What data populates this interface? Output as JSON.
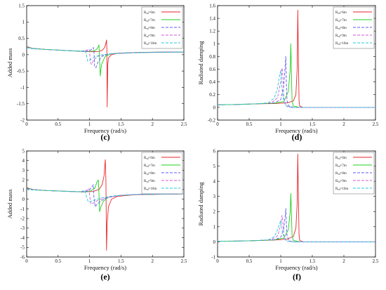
{
  "chart_data": [
    {
      "id": "c",
      "panel_label": "(c)",
      "type": "line",
      "xlabel": "Frequency (rad/s)",
      "ylabel": "Added mass",
      "xlim": [
        0,
        2.5
      ],
      "ylim": [
        -2,
        1.5
      ],
      "xticks": [
        "0",
        "0.5",
        "1",
        "1.5",
        "2",
        "2.5"
      ],
      "yticks": [
        "1.5",
        "1",
        "0.5",
        "0",
        "-0.5",
        "-1",
        "-1.5",
        "-2"
      ],
      "legend_placement": "top-right",
      "series": [
        {
          "name": "R_{sd}=6m",
          "color": "#e8262b",
          "dash": "",
          "x": [
            0,
            0.1,
            0.3,
            0.5,
            0.7,
            0.9,
            1.05,
            1.15,
            1.2,
            1.24,
            1.26,
            1.27,
            1.275,
            1.28,
            1.285,
            1.29,
            1.3,
            1.35,
            1.45,
            1.7,
            2.0,
            2.5
          ],
          "y": [
            0.25,
            0.19,
            0.16,
            0.14,
            0.12,
            0.1,
            0.09,
            0.1,
            0.13,
            0.22,
            0.35,
            0.45,
            0.2,
            -1.6,
            -0.9,
            -0.3,
            -0.1,
            0.0,
            0.04,
            0.06,
            0.07,
            0.08
          ]
        },
        {
          "name": "R_{sd}=7m",
          "color": "#1fd01f",
          "dash": "",
          "x": [
            0,
            0.1,
            0.3,
            0.5,
            0.7,
            0.9,
            1.0,
            1.08,
            1.12,
            1.14,
            1.15,
            1.16,
            1.17,
            1.19,
            1.25,
            1.35,
            1.5,
            1.8,
            2.2,
            2.5
          ],
          "y": [
            0.24,
            0.19,
            0.16,
            0.14,
            0.12,
            0.1,
            0.1,
            0.12,
            0.18,
            0.25,
            0.3,
            -0.2,
            -0.65,
            -0.3,
            -0.05,
            0.03,
            0.05,
            0.07,
            0.08,
            0.08
          ]
        },
        {
          "name": "R_{sd}=8m",
          "color": "#5b5bf0",
          "dash": "4 2",
          "x": [
            0,
            0.1,
            0.3,
            0.5,
            0.7,
            0.9,
            0.98,
            1.03,
            1.06,
            1.07,
            1.08,
            1.1,
            1.14,
            1.2,
            1.3,
            1.5,
            1.8,
            2.2,
            2.5
          ],
          "y": [
            0.23,
            0.19,
            0.16,
            0.14,
            0.12,
            0.1,
            0.11,
            0.16,
            0.22,
            0.1,
            -0.35,
            -0.4,
            -0.2,
            -0.05,
            0.02,
            0.05,
            0.07,
            0.08,
            0.08
          ]
        },
        {
          "name": "R_{sd}=9m",
          "color": "#d05ad8",
          "dash": "4 2",
          "x": [
            0,
            0.1,
            0.3,
            0.5,
            0.7,
            0.9,
            0.95,
            0.98,
            1.0,
            1.01,
            1.03,
            1.07,
            1.15,
            1.3,
            1.5,
            1.8,
            2.2,
            2.5
          ],
          "y": [
            0.22,
            0.19,
            0.16,
            0.14,
            0.12,
            0.11,
            0.13,
            0.16,
            0.15,
            -0.2,
            -0.3,
            -0.15,
            -0.03,
            0.02,
            0.05,
            0.07,
            0.08,
            0.08
          ]
        },
        {
          "name": "R_{sd}=10m",
          "color": "#22c8d8",
          "dash": "4 2",
          "x": [
            0,
            0.1,
            0.3,
            0.5,
            0.7,
            0.85,
            0.9,
            0.93,
            0.95,
            0.97,
            1.0,
            1.05,
            1.15,
            1.3,
            1.5,
            1.8,
            2.2,
            2.5
          ],
          "y": [
            0.21,
            0.18,
            0.16,
            0.14,
            0.12,
            0.11,
            0.12,
            0.13,
            0.0,
            -0.2,
            -0.18,
            -0.1,
            -0.02,
            0.02,
            0.04,
            0.06,
            0.07,
            0.08
          ]
        }
      ]
    },
    {
      "id": "d",
      "panel_label": "(d)",
      "type": "line",
      "xlabel": "Frequency (rad/s)",
      "ylabel": "Radiated damping",
      "xlim": [
        0,
        2.5
      ],
      "ylim": [
        -0.2,
        1.6
      ],
      "xticks": [
        "0",
        "0.5",
        "1",
        "1.5",
        "2",
        "2.5"
      ],
      "yticks": [
        "1.6",
        "1.4",
        "1.2",
        "1",
        "0.8",
        "0.6",
        "0.4",
        "0.2",
        "0",
        "-0.2"
      ],
      "legend_placement": "top-right",
      "series": [
        {
          "name": "R_{sd}=6m",
          "color": "#e8262b",
          "dash": "",
          "x": [
            0,
            0.3,
            0.6,
            0.9,
            1.1,
            1.2,
            1.24,
            1.26,
            1.27,
            1.28,
            1.29,
            1.3,
            1.35,
            1.5,
            2.0,
            2.5
          ],
          "y": [
            0.04,
            0.045,
            0.055,
            0.06,
            0.07,
            0.1,
            0.2,
            0.6,
            1.53,
            0.8,
            0.1,
            0.02,
            0.0,
            0.0,
            0.0,
            0.0
          ]
        },
        {
          "name": "R_{sd}=7m",
          "color": "#1fd01f",
          "dash": "",
          "x": [
            0,
            0.3,
            0.6,
            0.9,
            1.05,
            1.12,
            1.15,
            1.16,
            1.17,
            1.18,
            1.2,
            1.3,
            1.5,
            2.0,
            2.5
          ],
          "y": [
            0.04,
            0.045,
            0.055,
            0.065,
            0.09,
            0.25,
            0.6,
            1.0,
            0.5,
            0.1,
            0.02,
            0.0,
            0.0,
            0.0,
            0.0
          ]
        },
        {
          "name": "R_{sd}=8m",
          "color": "#5b5bf0",
          "dash": "4 2",
          "x": [
            0,
            0.3,
            0.6,
            0.9,
            1.0,
            1.05,
            1.07,
            1.08,
            1.09,
            1.1,
            1.13,
            1.2,
            1.5,
            2.0,
            2.5
          ],
          "y": [
            0.04,
            0.045,
            0.055,
            0.07,
            0.12,
            0.35,
            0.65,
            0.8,
            0.35,
            0.1,
            0.02,
            0.0,
            0.0,
            0.0,
            0.0
          ]
        },
        {
          "name": "R_{sd}=9m",
          "color": "#d05ad8",
          "dash": "4 2",
          "x": [
            0,
            0.3,
            0.6,
            0.85,
            0.95,
            1.0,
            1.02,
            1.03,
            1.05,
            1.08,
            1.15,
            1.3,
            2.0,
            2.5
          ],
          "y": [
            0.04,
            0.045,
            0.055,
            0.07,
            0.15,
            0.4,
            0.62,
            0.55,
            0.15,
            0.03,
            0.0,
            0.0,
            0.0,
            0.0
          ]
        },
        {
          "name": "R_{sd}=10m",
          "color": "#22c8d8",
          "dash": "4 2",
          "x": [
            0,
            0.3,
            0.6,
            0.8,
            0.9,
            0.95,
            0.98,
            1.0,
            1.02,
            1.05,
            1.1,
            1.2,
            1.5,
            2.0,
            2.5
          ],
          "y": [
            0.04,
            0.045,
            0.055,
            0.07,
            0.15,
            0.3,
            0.5,
            0.58,
            0.3,
            0.08,
            0.01,
            0.0,
            0.0,
            0.0,
            0.0
          ]
        }
      ]
    },
    {
      "id": "e",
      "panel_label": "(e)",
      "type": "line",
      "xlabel": "Frequency (rad/s)",
      "ylabel": "Added mass",
      "xlim": [
        0,
        2.5
      ],
      "ylim": [
        -6,
        5
      ],
      "xticks": [
        "0",
        "0.5",
        "1",
        "1.5",
        "2",
        "2.5"
      ],
      "yticks": [
        "5",
        "4",
        "3",
        "2",
        "1",
        "0",
        "-1",
        "-2",
        "-3",
        "-4",
        "-5",
        "-6"
      ],
      "legend_placement": "top-right",
      "series": [
        {
          "name": "R_{sd}=6m",
          "color": "#e8262b",
          "dash": "",
          "x": [
            0,
            0.1,
            0.3,
            0.5,
            0.7,
            0.9,
            1.05,
            1.15,
            1.2,
            1.23,
            1.25,
            1.26,
            1.265,
            1.27,
            1.28,
            1.3,
            1.35,
            1.45,
            1.7,
            2.0,
            2.5
          ],
          "y": [
            1.2,
            1.0,
            0.9,
            0.85,
            0.8,
            0.75,
            0.8,
            1.0,
            1.5,
            2.4,
            4.1,
            2.0,
            -1.5,
            -5.3,
            -2.5,
            -0.8,
            0.0,
            0.3,
            0.45,
            0.5,
            0.55
          ]
        },
        {
          "name": "R_{sd}=7m",
          "color": "#1fd01f",
          "dash": "",
          "x": [
            0,
            0.1,
            0.3,
            0.5,
            0.7,
            0.9,
            1.0,
            1.08,
            1.12,
            1.14,
            1.15,
            1.16,
            1.18,
            1.22,
            1.3,
            1.5,
            1.8,
            2.2,
            2.5
          ],
          "y": [
            1.15,
            1.0,
            0.9,
            0.85,
            0.8,
            0.75,
            0.8,
            1.1,
            1.8,
            2.0,
            0.5,
            -1.3,
            -0.8,
            -0.2,
            0.2,
            0.4,
            0.5,
            0.52,
            0.55
          ]
        },
        {
          "name": "R_{sd}=8m",
          "color": "#5b5bf0",
          "dash": "4 2",
          "x": [
            0,
            0.1,
            0.3,
            0.5,
            0.7,
            0.9,
            0.98,
            1.03,
            1.06,
            1.07,
            1.09,
            1.12,
            1.2,
            1.3,
            1.5,
            1.8,
            2.2,
            2.5
          ],
          "y": [
            1.1,
            1.0,
            0.9,
            0.85,
            0.8,
            0.75,
            0.85,
            1.2,
            1.5,
            0.2,
            -0.8,
            -0.5,
            -0.1,
            0.2,
            0.4,
            0.5,
            0.52,
            0.55
          ]
        },
        {
          "name": "R_{sd}=9m",
          "color": "#d05ad8",
          "dash": "4 2",
          "x": [
            0,
            0.1,
            0.3,
            0.5,
            0.7,
            0.9,
            0.95,
            0.99,
            1.0,
            1.02,
            1.06,
            1.15,
            1.3,
            1.5,
            1.8,
            2.2,
            2.5
          ],
          "y": [
            1.05,
            1.0,
            0.9,
            0.85,
            0.8,
            0.78,
            0.9,
            1.1,
            0.5,
            -0.5,
            -0.4,
            -0.05,
            0.2,
            0.4,
            0.5,
            0.52,
            0.55
          ]
        },
        {
          "name": "R_{sd}=10m",
          "color": "#22c8d8",
          "dash": "4 2",
          "x": [
            0,
            0.1,
            0.3,
            0.5,
            0.7,
            0.85,
            0.9,
            0.93,
            0.95,
            0.98,
            1.02,
            1.1,
            1.2,
            1.4,
            1.7,
            2.1,
            2.5
          ],
          "y": [
            1.0,
            0.95,
            0.9,
            0.85,
            0.8,
            0.78,
            0.85,
            0.9,
            0.3,
            -0.3,
            -0.25,
            -0.05,
            0.15,
            0.35,
            0.48,
            0.52,
            0.55
          ]
        }
      ]
    },
    {
      "id": "f",
      "panel_label": "(f)",
      "type": "line",
      "xlabel": "Frequency (rad/s)",
      "ylabel": "Radiated damping",
      "xlim": [
        0,
        2.5
      ],
      "ylim": [
        -1,
        6
      ],
      "xticks": [
        "0",
        "0.5",
        "1",
        "1.5",
        "2",
        "2.5"
      ],
      "yticks": [
        "6",
        "5",
        "4",
        "3",
        "2",
        "1",
        "0",
        "-1"
      ],
      "legend_placement": "top-right",
      "series": [
        {
          "name": "R_{sd}=6m",
          "color": "#e8262b",
          "dash": "",
          "x": [
            0,
            0.3,
            0.6,
            0.9,
            1.1,
            1.2,
            1.24,
            1.26,
            1.27,
            1.28,
            1.29,
            1.3,
            1.35,
            1.5,
            2.0,
            2.5
          ],
          "y": [
            0.04,
            0.05,
            0.08,
            0.12,
            0.18,
            0.35,
            0.9,
            2.5,
            5.8,
            3.0,
            0.5,
            0.1,
            0.0,
            0.0,
            0.0,
            0.0
          ]
        },
        {
          "name": "R_{sd}=7m",
          "color": "#1fd01f",
          "dash": "",
          "x": [
            0,
            0.3,
            0.6,
            0.9,
            1.05,
            1.12,
            1.15,
            1.16,
            1.17,
            1.18,
            1.2,
            1.3,
            1.5,
            2.0,
            2.5
          ],
          "y": [
            0.04,
            0.05,
            0.08,
            0.13,
            0.25,
            0.8,
            2.0,
            3.2,
            1.8,
            0.4,
            0.1,
            0.0,
            0.0,
            0.0,
            0.0
          ]
        },
        {
          "name": "R_{sd}=8m",
          "color": "#5b5bf0",
          "dash": "4 2",
          "x": [
            0,
            0.3,
            0.6,
            0.9,
            1.0,
            1.05,
            1.07,
            1.08,
            1.09,
            1.1,
            1.13,
            1.2,
            1.5,
            2.0,
            2.5
          ],
          "y": [
            0.04,
            0.05,
            0.08,
            0.14,
            0.3,
            0.9,
            1.7,
            2.2,
            1.2,
            0.4,
            0.08,
            0.0,
            0.0,
            0.0,
            0.0
          ]
        },
        {
          "name": "R_{sd}=9m",
          "color": "#d05ad8",
          "dash": "4 2",
          "x": [
            0,
            0.3,
            0.6,
            0.85,
            0.95,
            1.0,
            1.02,
            1.03,
            1.05,
            1.08,
            1.15,
            1.3,
            2.0,
            2.5
          ],
          "y": [
            0.04,
            0.05,
            0.08,
            0.14,
            0.4,
            1.1,
            1.75,
            1.5,
            0.5,
            0.1,
            0.01,
            0.0,
            0.0,
            0.0
          ]
        },
        {
          "name": "R_{sd}=10m",
          "color": "#22c8d8",
          "dash": "4 2",
          "x": [
            0,
            0.3,
            0.6,
            0.8,
            0.9,
            0.95,
            0.98,
            1.0,
            1.02,
            1.05,
            1.1,
            1.2,
            1.5,
            2.0,
            2.5
          ],
          "y": [
            0.04,
            0.05,
            0.08,
            0.13,
            0.35,
            0.8,
            1.2,
            1.4,
            0.8,
            0.25,
            0.05,
            0.0,
            0.0,
            0.0,
            0.0
          ]
        }
      ]
    }
  ]
}
